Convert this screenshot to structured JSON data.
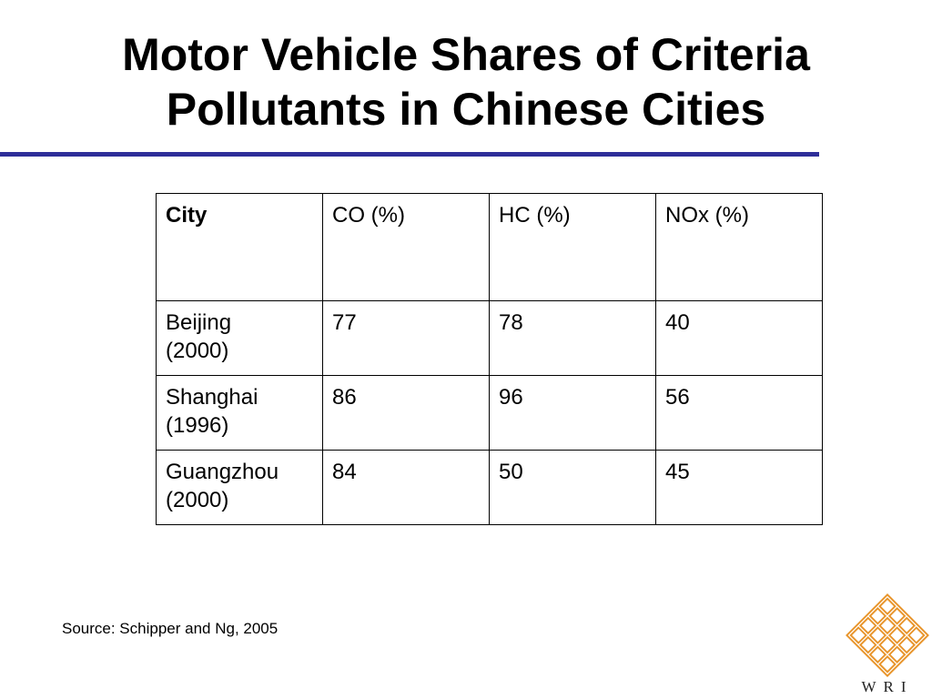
{
  "slide": {
    "title_line1": "Motor Vehicle Shares of Criteria",
    "title_line2": "Pollutants in Chinese Cities",
    "rule_color": "#2e2e99"
  },
  "table": {
    "headers": [
      "City",
      "CO (%)",
      "HC (%)",
      "NOx (%)"
    ],
    "rows": [
      {
        "city": "Beijing",
        "year": "(2000)",
        "co": "77",
        "hc": "78",
        "nox": "40"
      },
      {
        "city": "Shanghai",
        "year": "(1996)",
        "co": "86",
        "hc": "96",
        "nox": "56"
      },
      {
        "city": "Guangzhou",
        "year": "(2000)",
        "co": "84",
        "hc": "50",
        "nox": "45"
      }
    ]
  },
  "footer": {
    "source": "Source:  Schipper and Ng, 2005"
  },
  "logo": {
    "text": "WRI",
    "icon": "wri-knot-logo-icon",
    "color": "#e8942a"
  }
}
